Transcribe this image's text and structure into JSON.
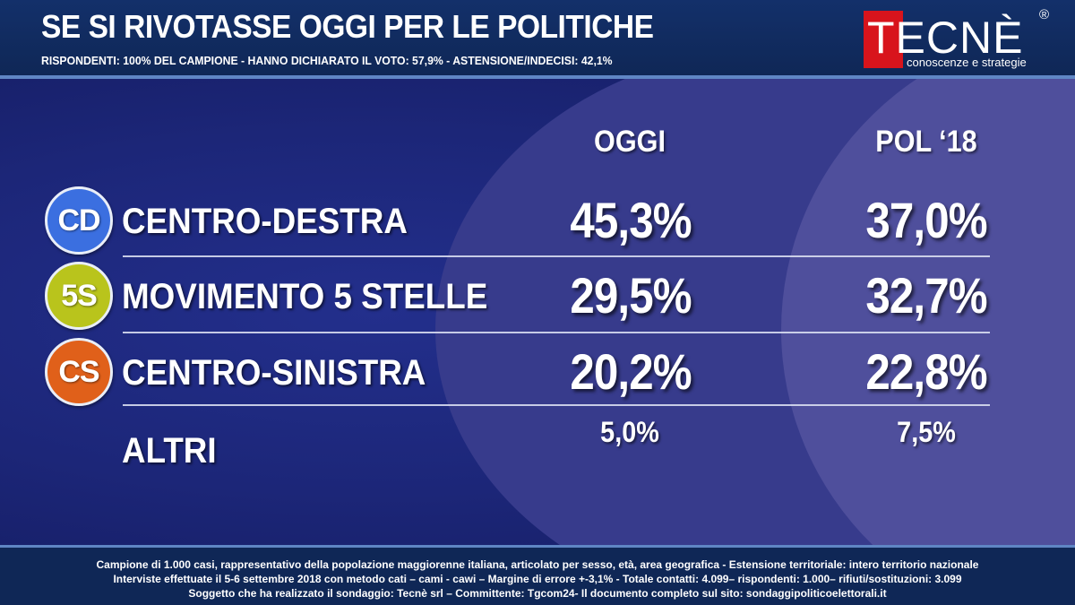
{
  "header": {
    "title": "SE SI RIVOTASSE OGGI PER LE POLITICHE",
    "subtitle": "RISPONDENTI: 100% DEL CAMPIONE - HANNO DICHIARATO IL VOTO: 57,9% - ASTENSIONE/INDECISI: 42,1%"
  },
  "logo": {
    "name": "TECNÈ",
    "registered": "®",
    "tagline": "conoscenze e strategie",
    "color": "#d8141c"
  },
  "chart_data": {
    "type": "table",
    "columns": [
      "OGGI",
      "POL ‘18"
    ],
    "rows": [
      {
        "badge": "CD",
        "party": "CENTRO-DESTRA",
        "color": "#3b6fe0",
        "values": [
          45.3,
          37.0
        ],
        "labels": [
          "45,3%",
          "37,0%"
        ]
      },
      {
        "badge": "5S",
        "party": "MOVIMENTO 5 STELLE",
        "color": "#b9c41c",
        "values": [
          29.5,
          32.7
        ],
        "labels": [
          "29,5%",
          "32,7%"
        ]
      },
      {
        "badge": "CS",
        "party": "CENTRO-SINISTRA",
        "color": "#e0601a",
        "values": [
          20.2,
          22.8
        ],
        "labels": [
          "20,2%",
          "22,8%"
        ]
      },
      {
        "badge": "",
        "party": "ALTRI",
        "color": "",
        "values": [
          5.0,
          7.5
        ],
        "labels": [
          "5,0%",
          "7,5%"
        ]
      }
    ]
  },
  "footer": {
    "line1": "Campione di  1.000 casi, rappresentativo della popolazione maggiorenne italiana, articolato per sesso, età, area geografica - Estensione territoriale: intero territorio nazionale",
    "line2": "Interviste effettuate il 5-6 settembre 2018 con metodo cati – cami - cawi – Margine di errore +-3,1%  - Totale contatti: 4.099– rispondenti: 1.000– rifiuti/sostituzioni: 3.099",
    "line3": "Soggetto che ha realizzato il sondaggio: Tecnè srl – Committente: Tgcom24- Il documento completo sul sito: sondaggipoliticoelettorali.it"
  }
}
